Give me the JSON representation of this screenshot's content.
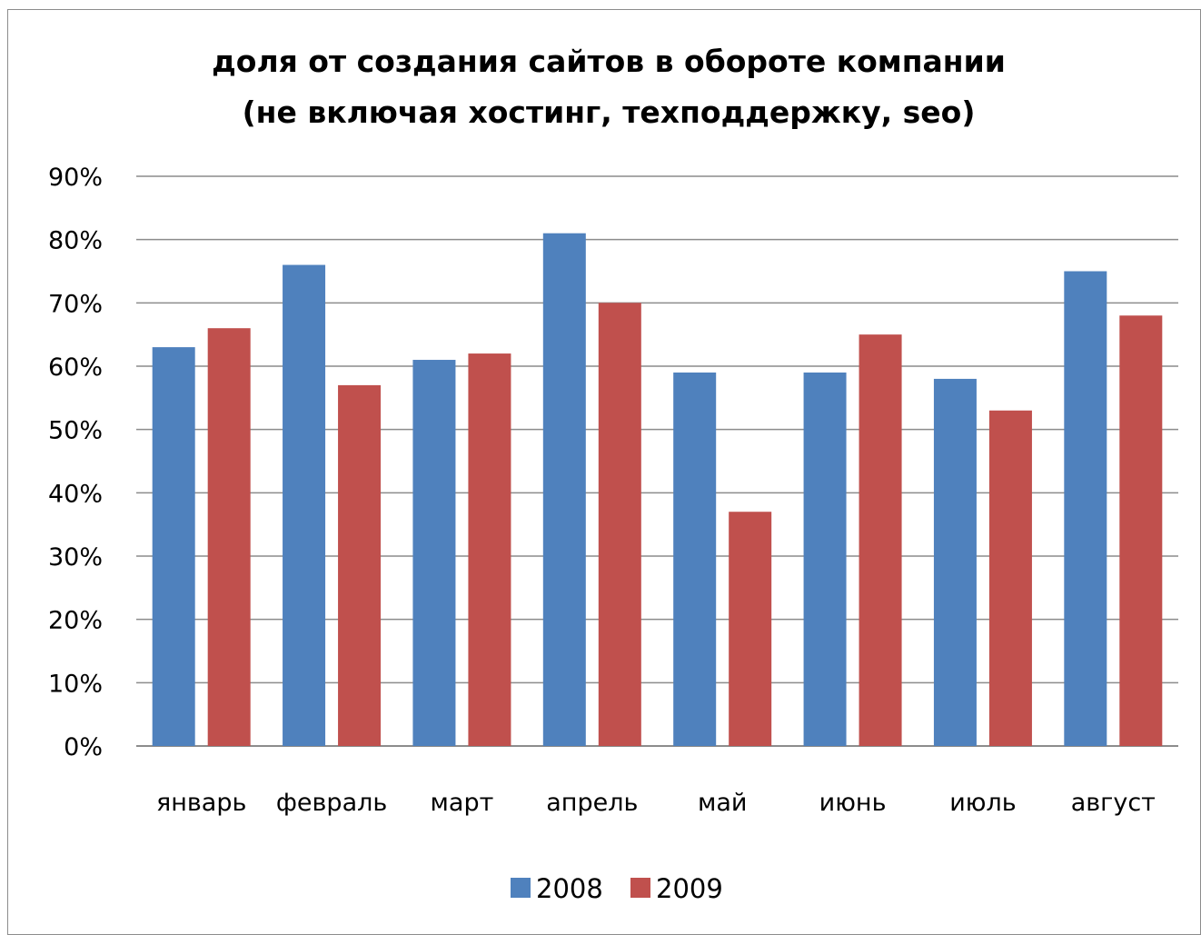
{
  "chart_data": {
    "type": "bar",
    "title": "доля от создания сайтов в обороте компании",
    "subtitle": "(не включая хостинг, техподдержку, seo)",
    "categories": [
      "январь",
      "февраль",
      "март",
      "апрель",
      "май",
      "июнь",
      "июль",
      "август"
    ],
    "series": [
      {
        "name": "2008",
        "color": "#4F81BD",
        "values": [
          63,
          76,
          61,
          81,
          59,
          59,
          58,
          75
        ]
      },
      {
        "name": "2009",
        "color": "#C0504D",
        "values": [
          66,
          57,
          62,
          70,
          37,
          65,
          53,
          68
        ]
      }
    ],
    "ylim": [
      0,
      90
    ],
    "yticks": [
      "0%",
      "10%",
      "20%",
      "30%",
      "40%",
      "50%",
      "60%",
      "70%",
      "80%",
      "90%"
    ],
    "xlabel": "",
    "ylabel": "",
    "grid": true,
    "legend_position": "bottom"
  }
}
